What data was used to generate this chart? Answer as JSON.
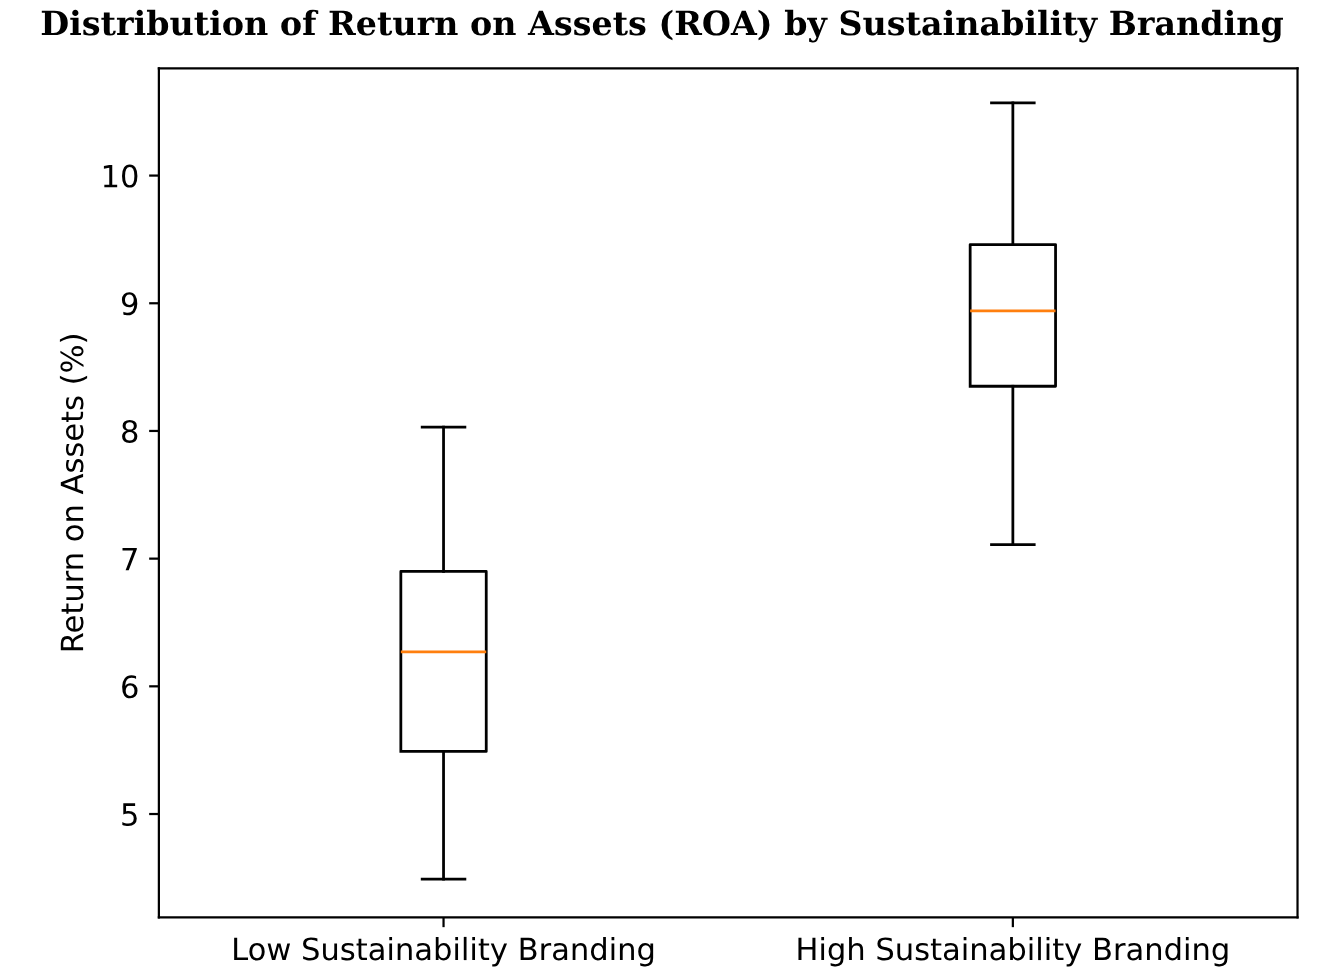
{
  "chart_data": {
    "type": "box",
    "title": "Distribution of Return on Assets (ROA) by Sustainability Branding",
    "ylabel": "Return on Assets (%)",
    "categories": [
      "Low Sustainability Branding",
      "High Sustainability Branding"
    ],
    "boxes": [
      {
        "low": 4.49,
        "q1": 5.49,
        "median": 6.27,
        "q3": 6.9,
        "high": 8.03
      },
      {
        "low": 7.11,
        "q1": 8.35,
        "median": 8.94,
        "q3": 9.46,
        "high": 10.57
      }
    ],
    "ylim": [
      4.19,
      10.84
    ],
    "yticks": [
      5,
      6,
      7,
      8,
      9,
      10
    ],
    "grid": false
  }
}
